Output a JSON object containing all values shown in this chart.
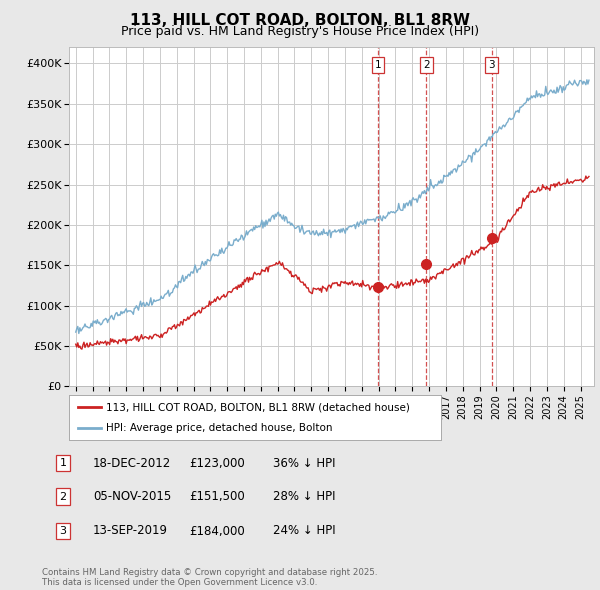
{
  "title": "113, HILL COT ROAD, BOLTON, BL1 8RW",
  "subtitle": "Price paid vs. HM Land Registry's House Price Index (HPI)",
  "ylim": [
    0,
    420000
  ],
  "yticks": [
    0,
    50000,
    100000,
    150000,
    200000,
    250000,
    300000,
    350000,
    400000
  ],
  "ytick_labels": [
    "£0",
    "£50K",
    "£100K",
    "£150K",
    "£200K",
    "£250K",
    "£300K",
    "£350K",
    "£400K"
  ],
  "background_color": "#e8e8e8",
  "plot_background": "#ffffff",
  "grid_color": "#cccccc",
  "title_fontsize": 11,
  "subtitle_fontsize": 9,
  "sale_dates_num": [
    2012.96,
    2015.84,
    2019.71
  ],
  "sale_prices": [
    123000,
    151500,
    184000
  ],
  "sale_labels": [
    "1",
    "2",
    "3"
  ],
  "vline_color": "#cc3333",
  "red_line_color": "#cc2222",
  "blue_line_color": "#7aadcc",
  "legend_red_label": "113, HILL COT ROAD, BOLTON, BL1 8RW (detached house)",
  "legend_blue_label": "HPI: Average price, detached house, Bolton",
  "table_rows": [
    {
      "num": "1",
      "date": "18-DEC-2012",
      "price": "£123,000",
      "note": "36% ↓ HPI"
    },
    {
      "num": "2",
      "date": "05-NOV-2015",
      "price": "£151,500",
      "note": "28% ↓ HPI"
    },
    {
      "num": "3",
      "date": "13-SEP-2019",
      "price": "£184,000",
      "note": "24% ↓ HPI"
    }
  ],
  "footer": "Contains HM Land Registry data © Crown copyright and database right 2025.\nThis data is licensed under the Open Government Licence v3.0.",
  "xlim_left": 1994.6,
  "xlim_right": 2025.8
}
